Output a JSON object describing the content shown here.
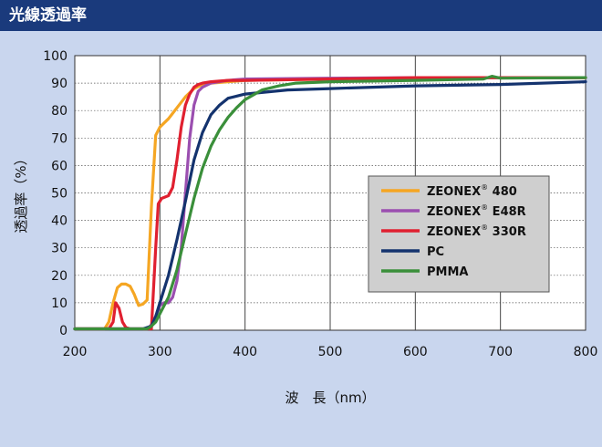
{
  "header": {
    "title": "光線透過率"
  },
  "colors": {
    "header_bg": "#1a3a7c",
    "panel_bg": "#c9d6ee",
    "plot_bg": "#ffffff",
    "legend_bg": "#cfcfcf"
  },
  "chart_data": {
    "type": "line",
    "title": "",
    "xlabel": "波　長（nm）",
    "ylabel": "透過率（%）",
    "xlim": [
      200,
      800
    ],
    "ylim": [
      0,
      100
    ],
    "xticks": [
      200,
      300,
      400,
      500,
      600,
      700,
      800
    ],
    "yticks": [
      0,
      10,
      20,
      30,
      40,
      50,
      60,
      70,
      80,
      90,
      100
    ],
    "xtick_labels": [
      "200",
      "300",
      "400",
      "500",
      "600",
      "700",
      "800"
    ],
    "ytick_labels": [
      "0",
      "10",
      "20",
      "30",
      "40",
      "50",
      "60",
      "70",
      "80",
      "90",
      "100"
    ],
    "grid": true,
    "legend_position": "center-right",
    "series": [
      {
        "name": "ZEONEX",
        "name_sup": "®",
        "name_suffix": " 480",
        "color": "#f5a623",
        "x": [
          200,
          235,
          240,
          245,
          250,
          255,
          260,
          265,
          270,
          275,
          280,
          285,
          290,
          295,
          300,
          310,
          320,
          330,
          340,
          350,
          360,
          380,
          400,
          500,
          600,
          700,
          800
        ],
        "y": [
          0.5,
          0.5,
          3,
          10,
          15.5,
          16.8,
          16.8,
          16,
          13,
          9,
          9.5,
          11,
          45,
          71,
          74,
          77,
          81,
          85,
          88,
          89.5,
          90,
          90.5,
          91,
          91.5,
          91.8,
          92,
          92
        ]
      },
      {
        "name": "ZEONEX",
        "name_sup": "®",
        "name_suffix": " E48R",
        "color": "#9b4fb0",
        "x": [
          200,
          285,
          290,
          295,
          300,
          305,
          310,
          315,
          320,
          325,
          330,
          335,
          340,
          345,
          350,
          360,
          380,
          400,
          500,
          600,
          700,
          800
        ],
        "y": [
          0.5,
          0.5,
          2,
          5,
          9,
          10,
          10,
          12,
          18,
          30,
          50,
          70,
          82,
          87,
          88.5,
          90,
          91,
          91.5,
          91.8,
          92,
          92,
          92
        ]
      },
      {
        "name": "ZEONEX",
        "name_sup": "®",
        "name_suffix": " 330R",
        "color": "#e02030",
        "x": [
          200,
          240,
          245,
          248,
          252,
          256,
          260,
          265,
          290,
          295,
          298,
          302,
          310,
          315,
          320,
          325,
          330,
          335,
          340,
          345,
          350,
          360,
          380,
          400,
          500,
          600,
          700,
          800
        ],
        "y": [
          0.5,
          0.5,
          3,
          10,
          8,
          3,
          1,
          0.5,
          0.5,
          30,
          46,
          48,
          49,
          52,
          62,
          74,
          82,
          86,
          88.5,
          89.5,
          90,
          90.5,
          91,
          91,
          91.5,
          92,
          92,
          92
        ]
      },
      {
        "name": "PC",
        "name_sup": "",
        "name_suffix": "",
        "color": "#14336e",
        "x": [
          200,
          280,
          290,
          295,
          300,
          310,
          320,
          330,
          340,
          350,
          360,
          370,
          380,
          400,
          450,
          500,
          600,
          700,
          800
        ],
        "y": [
          0.5,
          0.5,
          1.5,
          5,
          10,
          20,
          33,
          47,
          62,
          72,
          78.5,
          82,
          84.5,
          86,
          87.5,
          88,
          89,
          89.5,
          90.5
        ]
      },
      {
        "name": "PMMA",
        "name_sup": "",
        "name_suffix": "",
        "color": "#3a8f3a",
        "x": [
          200,
          285,
          290,
          295,
          300,
          310,
          320,
          330,
          340,
          350,
          360,
          370,
          380,
          390,
          400,
          420,
          440,
          460,
          500,
          600,
          680,
          690,
          700,
          800
        ],
        "y": [
          0.5,
          0.5,
          1.5,
          3,
          6,
          12,
          22,
          35,
          48,
          59,
          67,
          73,
          77.5,
          81,
          84,
          87.5,
          89,
          90,
          90.5,
          91,
          91.5,
          92.5,
          91.8,
          92
        ]
      }
    ]
  }
}
